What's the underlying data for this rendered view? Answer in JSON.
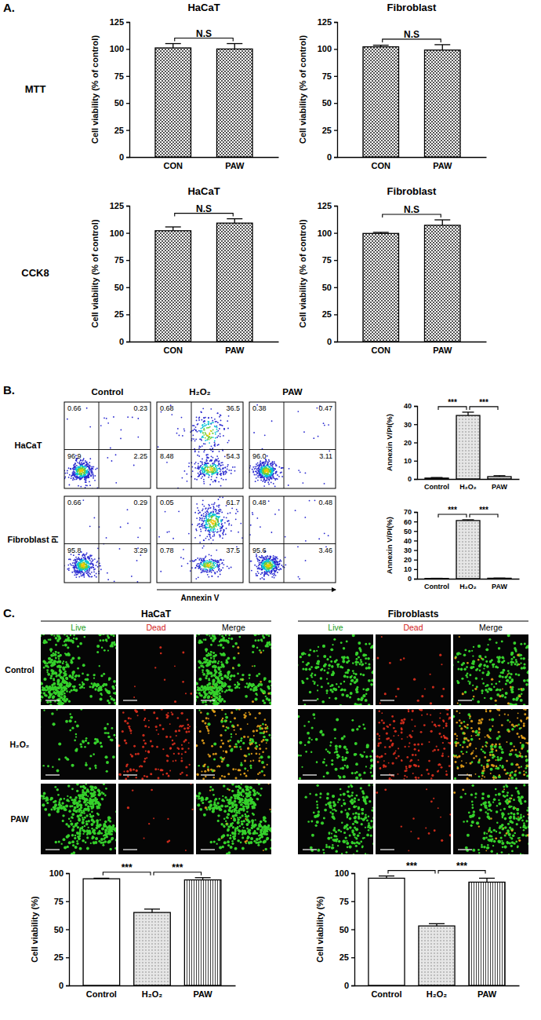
{
  "panels": {
    "labels": [
      "A.",
      "B.",
      "C."
    ],
    "assay_labels": [
      "MTT",
      "CCK8"
    ],
    "flow": {
      "columns": [
        "Control",
        "H₂O₂",
        "PAW"
      ],
      "rows": [
        "HaCaT",
        "Fibroblast"
      ],
      "x_label": "Annexin V",
      "y_label": "PI",
      "quadrants": [
        [
          [
            "0.66",
            "0.23",
            "96.9",
            "2.25"
          ],
          [
            "0.68",
            "36.5",
            "8.48",
            "54.3"
          ],
          [
            "0.38",
            "0.47",
            "96.0",
            "3.11"
          ]
        ],
        [
          [
            "0.66",
            "0.29",
            "95.8",
            "3.29"
          ],
          [
            "0.05",
            "61.7",
            "0.78",
            "37.5"
          ],
          [
            "0.48",
            "0.48",
            "95.6",
            "3.46"
          ]
        ]
      ]
    },
    "images": {
      "groups": [
        "HaCaT",
        "Fibroblasts"
      ],
      "channels": [
        "Live",
        "Dead",
        "Merge"
      ],
      "rows": [
        "Control",
        "H₂O₂",
        "PAW"
      ]
    }
  },
  "chart_data": [
    {
      "type": "bar",
      "title": "HaCaT",
      "ylabel": "Cell viability (% of control)",
      "categories": [
        "CON",
        "PAW"
      ],
      "values": [
        101,
        100
      ],
      "errors": [
        4,
        5
      ],
      "colors": [
        "#ffffff",
        "#ffffff"
      ],
      "ylim": [
        0,
        125
      ],
      "yticks": [
        0,
        25,
        50,
        75,
        100,
        125
      ],
      "annotations": [
        "N.S"
      ]
    },
    {
      "type": "bar",
      "title": "Fibroblast",
      "ylabel": "Cell viability (% of control)",
      "categories": [
        "CON",
        "PAW"
      ],
      "values": [
        102,
        99
      ],
      "errors": [
        1.5,
        5
      ],
      "colors": [
        "#ffffff",
        "#ffffff"
      ],
      "ylim": [
        0,
        125
      ],
      "yticks": [
        0,
        25,
        50,
        75,
        100,
        125
      ],
      "annotations": [
        "N.S"
      ]
    },
    {
      "type": "bar",
      "title": "HaCaT",
      "ylabel": "Cell viability (% of control)",
      "categories": [
        "CON",
        "PAW"
      ],
      "values": [
        102,
        109
      ],
      "errors": [
        3.5,
        4
      ],
      "colors": [
        "#ffffff",
        "#ffffff"
      ],
      "ylim": [
        0,
        125
      ],
      "yticks": [
        0,
        25,
        50,
        75,
        100,
        125
      ],
      "annotations": [
        "N.S"
      ]
    },
    {
      "type": "bar",
      "title": "Fibroblast",
      "ylabel": "Cell viability (% of control)",
      "categories": [
        "CON",
        "PAW"
      ],
      "values": [
        99.5,
        107
      ],
      "errors": [
        1,
        5
      ],
      "colors": [
        "#ffffff",
        "#ffffff"
      ],
      "ylim": [
        0,
        125
      ],
      "yticks": [
        0,
        25,
        50,
        75,
        100,
        125
      ],
      "annotations": [
        "N.S"
      ]
    },
    {
      "type": "bar",
      "ylabel": "Annexin V/PI(%)",
      "categories": [
        "Control",
        "H₂O₂",
        "PAW"
      ],
      "values": [
        0.5,
        34.8,
        1.3
      ],
      "errors": [
        0.3,
        1.8,
        0.5
      ],
      "colors": [
        "#e6e6e6",
        "#e6e6e6",
        "#e6e6e6"
      ],
      "ylim": [
        0,
        40
      ],
      "yticks": [
        0,
        10,
        20,
        30,
        40
      ],
      "annotations": [
        "***",
        "***"
      ]
    },
    {
      "type": "bar",
      "ylabel": "Annexin V/PI(%)",
      "categories": [
        "Control",
        "H₂O₂",
        "PAW"
      ],
      "values": [
        0.3,
        61,
        0.5
      ],
      "errors": [
        0.1,
        0.8,
        0.1
      ],
      "colors": [
        "#e6e6e6",
        "#e6e6e6",
        "#e6e6e6"
      ],
      "ylim": [
        0,
        70
      ],
      "yticks": [
        0,
        10,
        20,
        30,
        40,
        50,
        60,
        70
      ],
      "annotations": [
        "***",
        "***"
      ]
    },
    {
      "type": "bar",
      "ylabel": "Cell viability (%)",
      "categories": [
        "Control",
        "H₂O₂",
        "PAW"
      ],
      "values": [
        95,
        65,
        94
      ],
      "errors": [
        0.5,
        3,
        2
      ],
      "colors": [
        "#ffffff",
        "#e6e6e6",
        "#ffffff"
      ],
      "ylim": [
        0,
        100
      ],
      "yticks": [
        0,
        25,
        50,
        75,
        100
      ],
      "annotations": [
        "***",
        "***"
      ]
    },
    {
      "type": "bar",
      "ylabel": "Cell viability (%)",
      "categories": [
        "Control",
        "H₂O₂",
        "PAW"
      ],
      "values": [
        95.5,
        53,
        92
      ],
      "errors": [
        2,
        2,
        3.5
      ],
      "colors": [
        "#ffffff",
        "#e6e6e6",
        "#ffffff"
      ],
      "ylim": [
        0,
        100
      ],
      "yticks": [
        0,
        25,
        50,
        75,
        100
      ],
      "annotations": [
        "***",
        "***"
      ]
    }
  ]
}
